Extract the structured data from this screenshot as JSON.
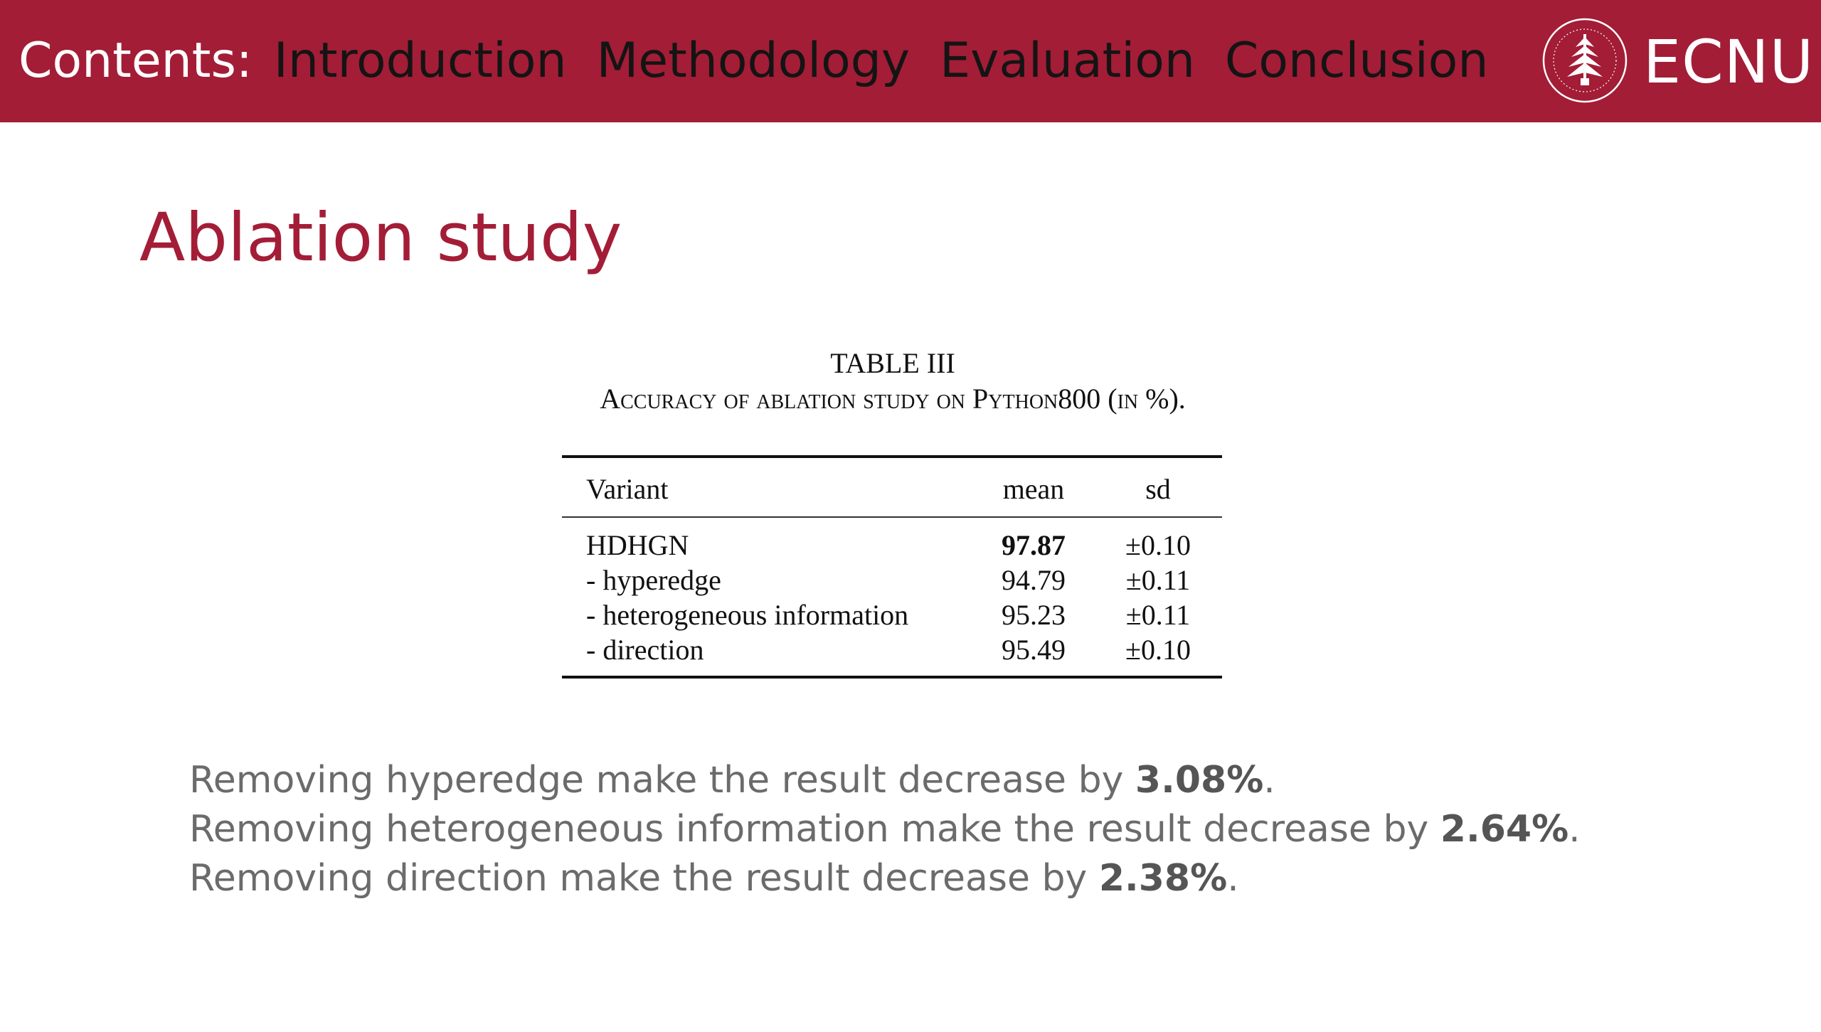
{
  "header": {
    "contents_label": "Contents:",
    "nav_items": [
      "Introduction",
      "Methodology",
      "Evaluation",
      "Conclusion"
    ],
    "brand": "ECNU",
    "logo_icon": "ecnu-seal-icon",
    "bar_color": "#a31d37"
  },
  "slide": {
    "title": "Ablation study",
    "title_color": "#a31d37"
  },
  "table": {
    "number": "TABLE III",
    "caption": "Accuracy of ablation study on Python800 (in %).",
    "headers": [
      "Variant",
      "mean",
      "sd"
    ],
    "rows": [
      {
        "variant": "HDHGN",
        "mean": "97.87",
        "sd": "±0.10",
        "bold_mean": true
      },
      {
        "variant": "- hyperedge",
        "mean": "94.79",
        "sd": "±0.11",
        "bold_mean": false
      },
      {
        "variant": "- heterogeneous information",
        "mean": "95.23",
        "sd": "±0.11",
        "bold_mean": false
      },
      {
        "variant": "- direction",
        "mean": "95.49",
        "sd": "±0.10",
        "bold_mean": false
      }
    ]
  },
  "findings": [
    {
      "prefix": "Removing hyperedge make the result decrease by ",
      "value": "3.08%",
      "suffix": "."
    },
    {
      "prefix": "Removing heterogeneous information make the result decrease by ",
      "value": "2.64%",
      "suffix": "."
    },
    {
      "prefix": "Removing direction make the result decrease by ",
      "value": "2.38%",
      "suffix": "."
    }
  ]
}
